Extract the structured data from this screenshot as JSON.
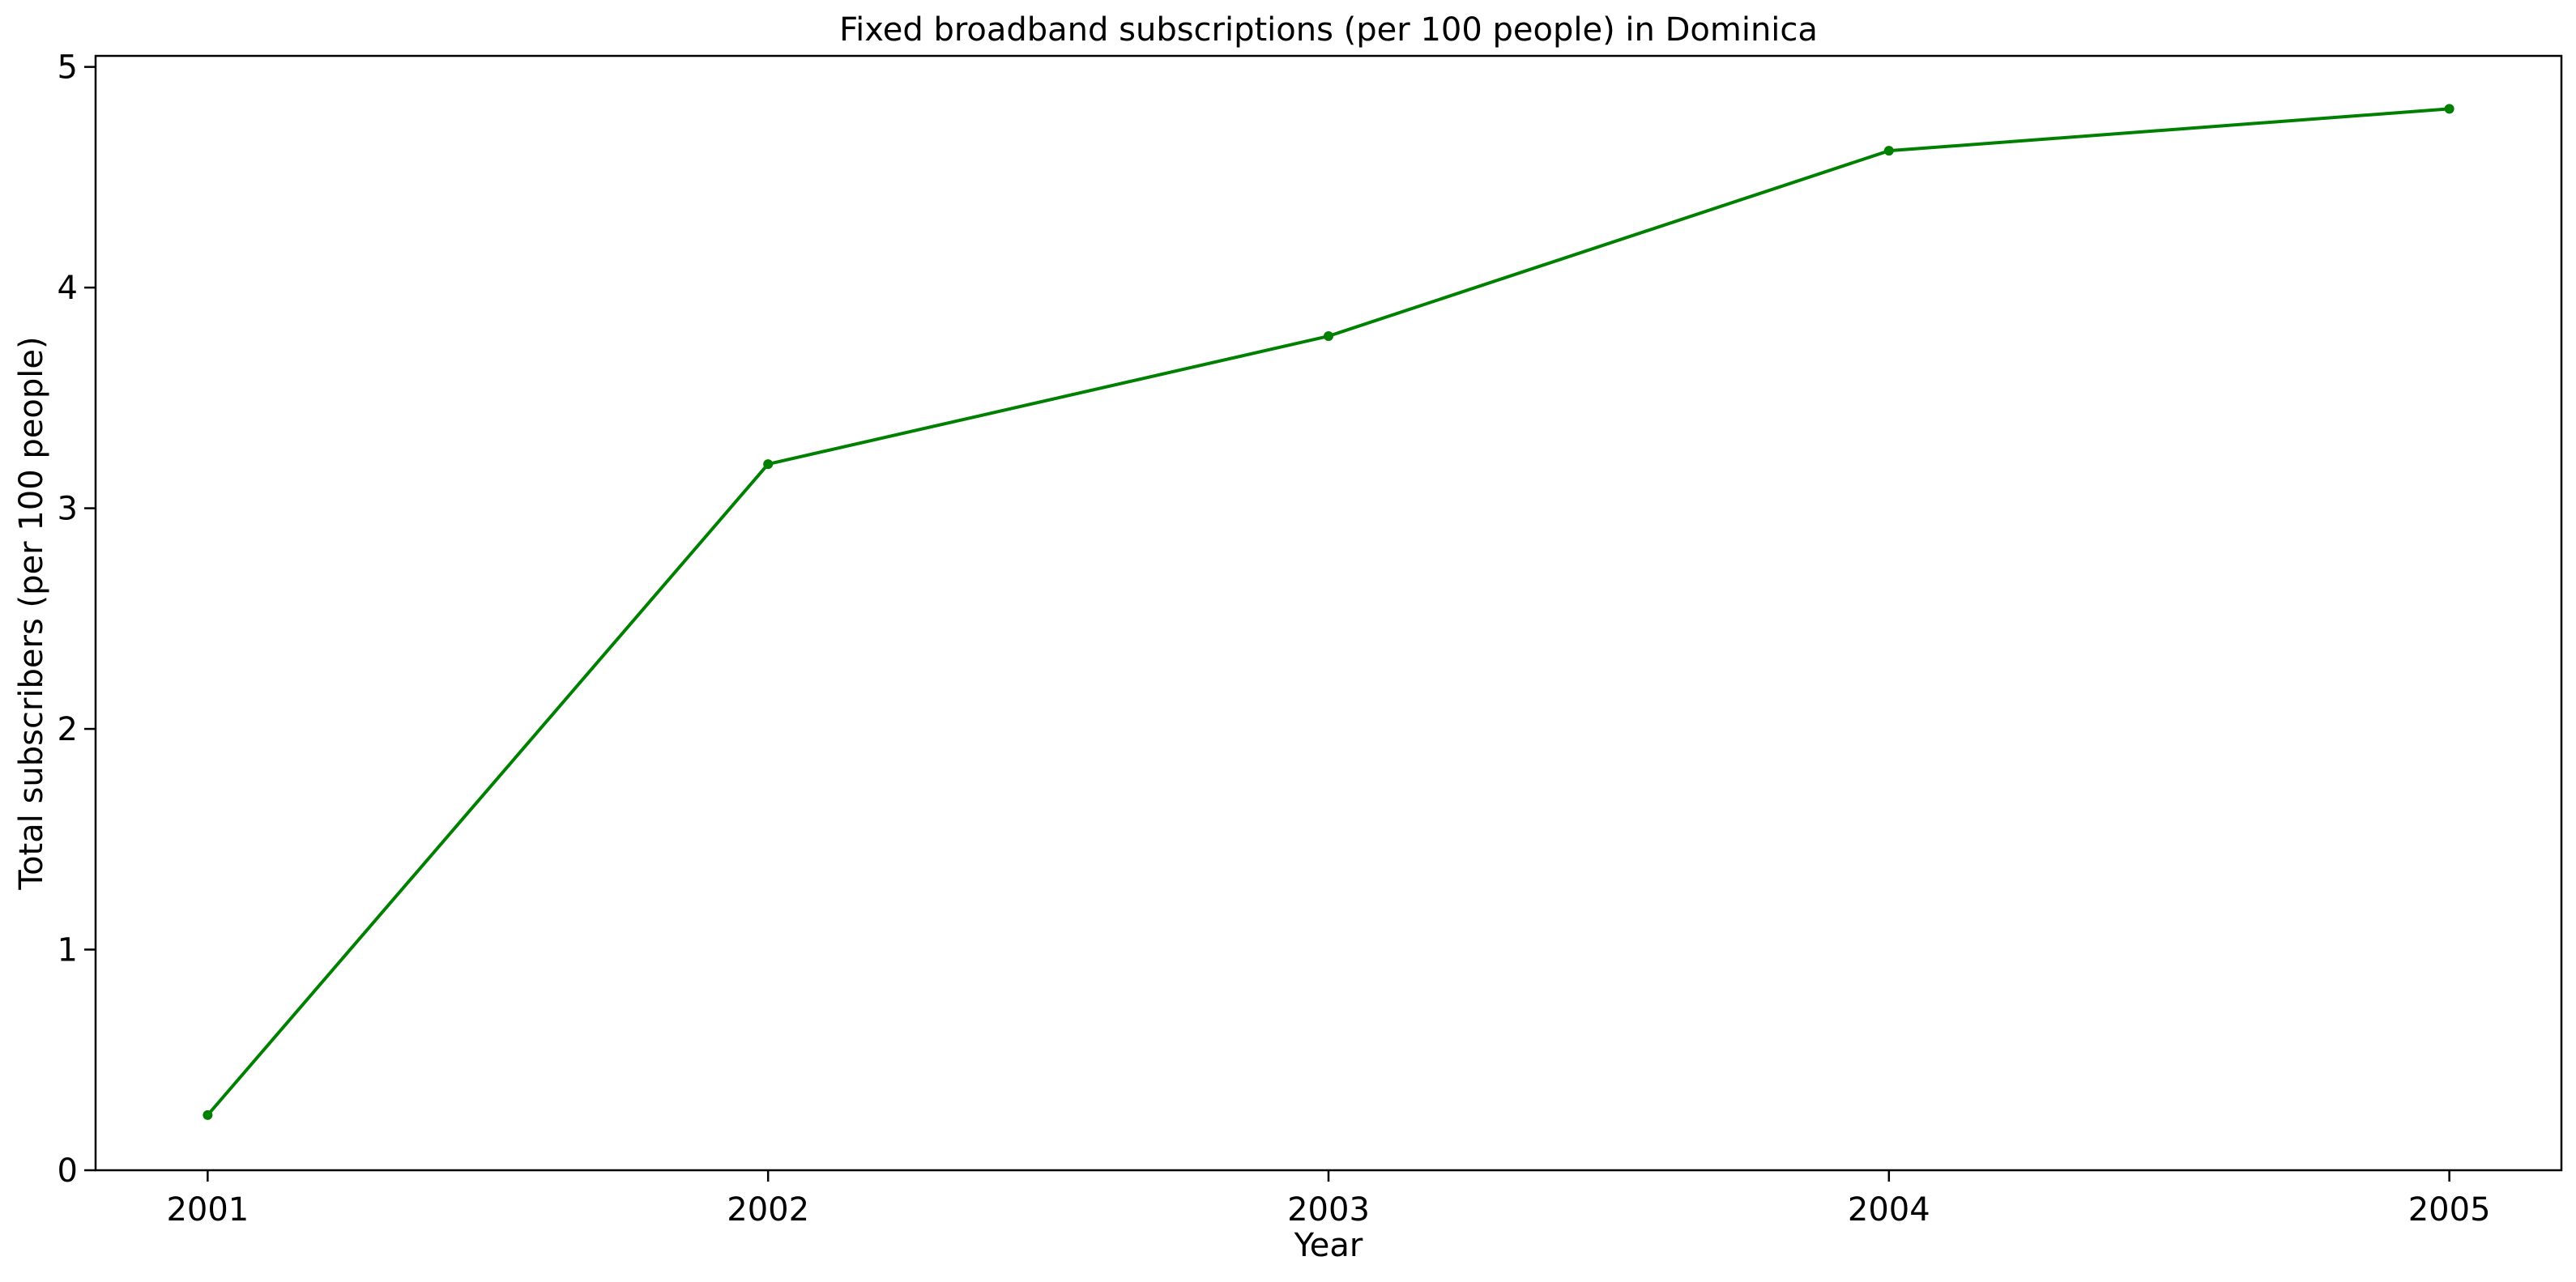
{
  "chart_data": {
    "type": "line",
    "title": "Fixed broadband subscriptions (per 100 people) in Dominica",
    "xlabel": "Year",
    "ylabel": "Total subscribers (per 100 people)",
    "x": [
      "2001",
      "2002",
      "2003",
      "2004",
      "2005"
    ],
    "series": [
      {
        "values": [
          0.25,
          3.2,
          3.78,
          4.62,
          4.81
        ],
        "color": "#008000",
        "marker": "circle"
      }
    ],
    "xlim": [
      2000.8,
      2005.2
    ],
    "ylim": [
      0,
      5.05
    ],
    "yticks": [
      0,
      1,
      2,
      3,
      4,
      5
    ],
    "xticks": [
      "2001",
      "2002",
      "2003",
      "2004",
      "2005"
    ],
    "grid": false,
    "legend": "none"
  }
}
